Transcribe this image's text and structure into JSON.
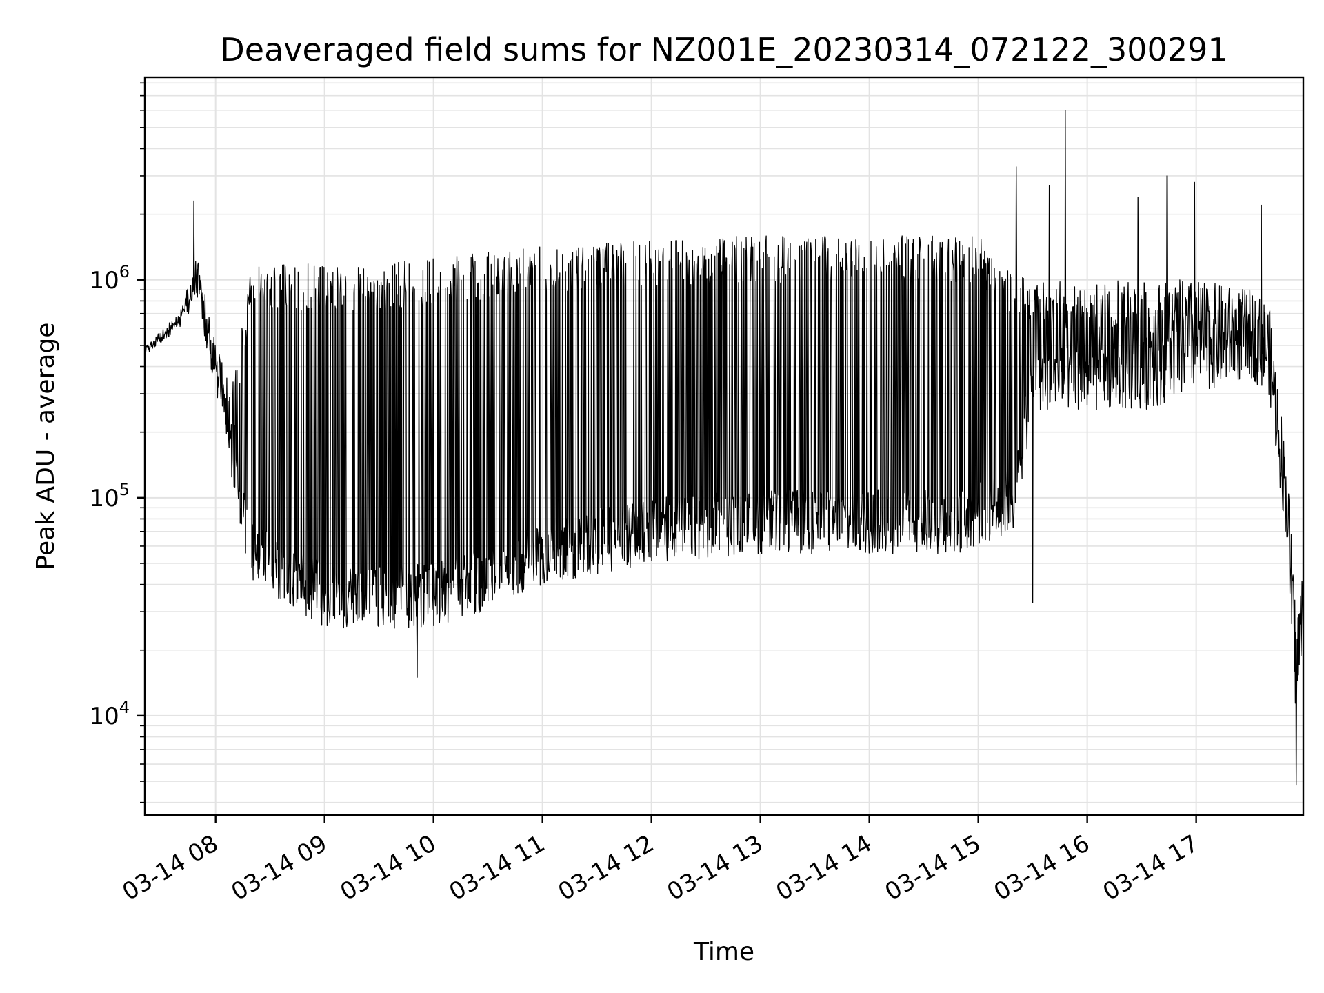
{
  "chart_data": {
    "type": "line",
    "title": "Deaveraged field sums for NZ001E_20230314_072122_300291",
    "xlabel": "Time",
    "ylabel": "Peak ADU - average",
    "yscale": "log",
    "ylim": [
      3500,
      8500000
    ],
    "xlim": [
      "2023-03-14 07:21",
      "2023-03-14 17:59"
    ],
    "x_ticks": [
      {
        "value": "2023-03-14 08:00",
        "label": "03-14 08"
      },
      {
        "value": "2023-03-14 09:00",
        "label": "03-14 09"
      },
      {
        "value": "2023-03-14 10:00",
        "label": "03-14 10"
      },
      {
        "value": "2023-03-14 11:00",
        "label": "03-14 11"
      },
      {
        "value": "2023-03-14 12:00",
        "label": "03-14 12"
      },
      {
        "value": "2023-03-14 13:00",
        "label": "03-14 13"
      },
      {
        "value": "2023-03-14 14:00",
        "label": "03-14 14"
      },
      {
        "value": "2023-03-14 15:00",
        "label": "03-14 15"
      },
      {
        "value": "2023-03-14 16:00",
        "label": "03-14 16"
      },
      {
        "value": "2023-03-14 17:00",
        "label": "03-14 17"
      }
    ],
    "y_ticks": [
      {
        "value": 10000,
        "base": "10",
        "exp": "4"
      },
      {
        "value": 100000,
        "base": "10",
        "exp": "5"
      },
      {
        "value": 1000000,
        "base": "10",
        "exp": "6"
      }
    ],
    "grid": true,
    "line_color": "#000000",
    "grid_color": "#e3e3e3",
    "envelope": {
      "x": [
        "2023-03-14 07:21",
        "2023-03-14 07:40",
        "2023-03-14 07:50",
        "2023-03-14 08:00",
        "2023-03-14 08:10",
        "2023-03-14 08:20",
        "2023-03-14 08:40",
        "2023-03-14 09:00",
        "2023-03-14 09:30",
        "2023-03-14 10:00",
        "2023-03-14 10:30",
        "2023-03-14 11:00",
        "2023-03-14 12:00",
        "2023-03-14 13:00",
        "2023-03-14 14:00",
        "2023-03-14 14:50",
        "2023-03-14 15:00",
        "2023-03-14 15:20",
        "2023-03-14 15:30",
        "2023-03-14 16:00",
        "2023-03-14 16:30",
        "2023-03-14 17:00",
        "2023-03-14 17:30",
        "2023-03-14 17:40",
        "2023-03-14 17:50",
        "2023-03-14 17:55",
        "2023-03-14 17:59"
      ],
      "low": [
        450000,
        600000,
        800000,
        300000,
        100000,
        40000,
        30000,
        25000,
        25000,
        25000,
        30000,
        40000,
        50000,
        55000,
        55000,
        55000,
        60000,
        70000,
        250000,
        250000,
        250000,
        300000,
        350000,
        300000,
        60000,
        8000,
        20000
      ],
      "high": [
        500000,
        700000,
        1300000,
        500000,
        350000,
        1200000,
        1200000,
        1200000,
        1200000,
        1250000,
        1350000,
        1450000,
        1550000,
        1600000,
        1600000,
        1600000,
        1600000,
        1100000,
        1000000,
        1000000,
        1000000,
        1000000,
        900000,
        800000,
        150000,
        30000,
        50000
      ]
    },
    "spikes": [
      {
        "x": "2023-03-14 07:48",
        "y": 2300000
      },
      {
        "x": "2023-03-14 15:21",
        "y": 3300000
      },
      {
        "x": "2023-03-14 15:39",
        "y": 2700000
      },
      {
        "x": "2023-03-14 15:48",
        "y": 6000000
      },
      {
        "x": "2023-03-14 16:28",
        "y": 2400000
      },
      {
        "x": "2023-03-14 16:44",
        "y": 3000000
      },
      {
        "x": "2023-03-14 16:59",
        "y": 2800000
      },
      {
        "x": "2023-03-14 17:36",
        "y": 2200000
      },
      {
        "x": "2023-03-14 17:55",
        "y": 4800
      },
      {
        "x": "2023-03-14 15:30",
        "y": 33000
      },
      {
        "x": "2023-03-14 09:51",
        "y": 15000
      }
    ]
  }
}
